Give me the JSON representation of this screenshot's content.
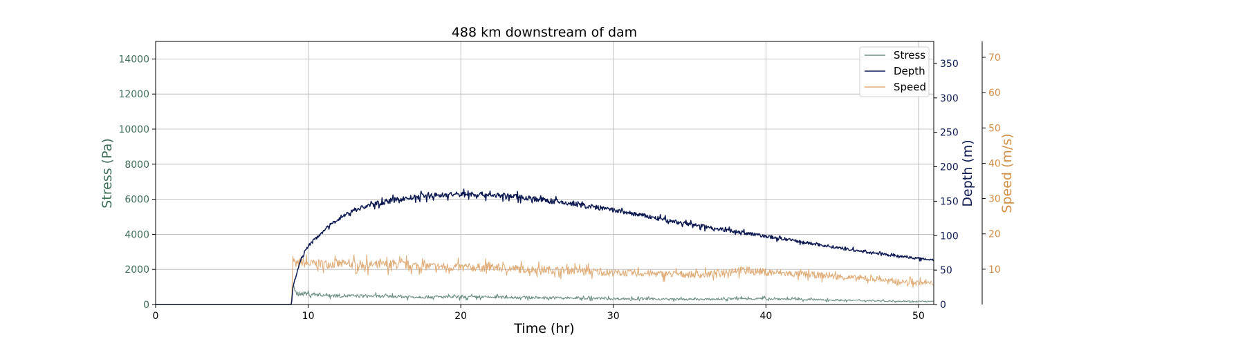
{
  "chart_data": {
    "type": "line",
    "title": "488 km downstream of dam",
    "xlabel": "Time (hr)",
    "xlim": [
      0,
      51
    ],
    "xticks": [
      0,
      10,
      20,
      30,
      40,
      50
    ],
    "grid": true,
    "legend_position": "top-right",
    "axes": {
      "stress": {
        "label": "Stress (Pa)",
        "ylim": [
          0,
          15000
        ],
        "ticks": [
          0,
          2000,
          4000,
          6000,
          8000,
          10000,
          12000,
          14000
        ],
        "color": "#3e6e55",
        "side": "left"
      },
      "depth": {
        "label": "Depth (m)",
        "ylim": [
          0,
          382
        ],
        "ticks": [
          0,
          50,
          100,
          150,
          200,
          250,
          300,
          350
        ],
        "color": "#0d1a52",
        "side": "right"
      },
      "speed": {
        "label": "Speed (m/s)",
        "ylim": [
          0,
          74.5
        ],
        "ticks": [
          10,
          20,
          30,
          40,
          50,
          60,
          70
        ],
        "color": "#d38f45",
        "side": "right-outer"
      }
    },
    "series": [
      {
        "name": "Stress",
        "axis": "stress",
        "color": "#6b8f80",
        "noise": 0.28,
        "x": [
          0,
          8.9,
          9.0,
          9.2,
          10,
          12,
          14,
          16,
          18,
          20,
          22,
          24,
          26,
          28,
          30,
          32,
          34,
          36,
          38,
          40,
          42,
          44,
          46,
          48,
          50,
          51
        ],
        "y": [
          0,
          0,
          1000,
          650,
          600,
          500,
          480,
          450,
          430,
          420,
          420,
          400,
          380,
          360,
          330,
          320,
          300,
          290,
          340,
          330,
          300,
          260,
          230,
          200,
          180,
          170
        ]
      },
      {
        "name": "Depth",
        "axis": "depth",
        "color": "#0d1a52",
        "noise": 0.035,
        "x": [
          0,
          8.9,
          9.0,
          9.5,
          10,
          11,
          12,
          13,
          14,
          15,
          16,
          18,
          20,
          21,
          22,
          24,
          26,
          28,
          30,
          32,
          34,
          36,
          38,
          40,
          42,
          44,
          46,
          48,
          50,
          51
        ],
        "y": [
          0,
          0,
          25,
          65,
          85,
          107,
          125,
          137,
          144,
          149,
          153,
          158,
          160,
          160,
          159,
          156,
          150,
          144,
          137,
          129,
          120,
          113,
          106,
          99,
          92,
          85,
          78,
          72,
          67,
          65
        ]
      },
      {
        "name": "Speed",
        "axis": "speed",
        "color": "#e0ad78",
        "noise": 0.16,
        "x": [
          0,
          8.9,
          9.0,
          9.2,
          9.5,
          10,
          12,
          14,
          16,
          18,
          20,
          22,
          24,
          26,
          28,
          30,
          32,
          34,
          36,
          38,
          40,
          42,
          44,
          46,
          47.5,
          48,
          50,
          51
        ],
        "y": [
          0,
          0,
          13,
          11,
          12,
          11.5,
          11.5,
          11.2,
          11.3,
          10.8,
          10.5,
          10.5,
          10,
          9.8,
          9.5,
          9,
          8.8,
          8.6,
          8.4,
          9.8,
          9.2,
          8.6,
          8.2,
          7.4,
          7.2,
          6.6,
          6.2,
          6
        ]
      }
    ]
  }
}
